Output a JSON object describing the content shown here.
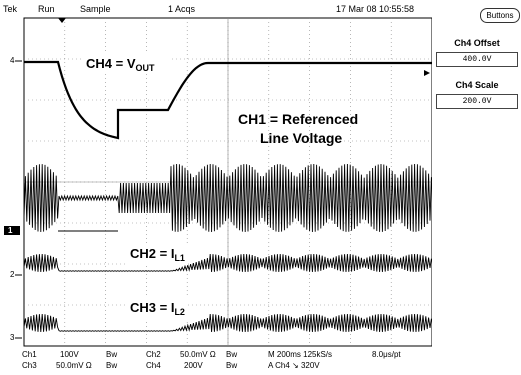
{
  "topbar": {
    "brand": "Tek",
    "run_state": "Run",
    "mode": "Sample",
    "acqs": "1 Acqs",
    "datetime": "17 Mar 08 10:55:58"
  },
  "buttons_label": "Buttons",
  "ch4_offset": {
    "label": "Ch4 Offset",
    "value": "400.0V"
  },
  "ch4_scale": {
    "label": "Ch4 Scale",
    "value": "200.0V"
  },
  "annotations": {
    "ch4_main": "CH4 = V",
    "ch4_sub": "OUT",
    "ch1_line1": "CH1 = Referenced",
    "ch1_line2": "Line Voltage",
    "ch2_main": "CH2 = I",
    "ch2_sub": "L1",
    "ch3_main": "CH3 = I",
    "ch3_sub": "L2"
  },
  "markers": {
    "ch4": "4",
    "ch1": "1",
    "ch2": "2",
    "ch3": "3"
  },
  "status": {
    "ch1_name": "Ch1",
    "ch1_scale": "100V",
    "ch1_bw": "Bw",
    "ch3_name": "Ch3",
    "ch3_scale": "50.0mV Ω",
    "ch3_bw": "Bw",
    "ch2_name": "Ch2",
    "ch2_scale": "50.0mV Ω",
    "ch2_bw": "Bw",
    "ch4_name": "Ch4",
    "ch4_scale": "200V",
    "ch4_bw": "Bw",
    "timebase": "M 200ms 125kS/s",
    "per_pt": "8.0μs/pt",
    "trigger": "A  Ch4  ↘  320V"
  }
}
